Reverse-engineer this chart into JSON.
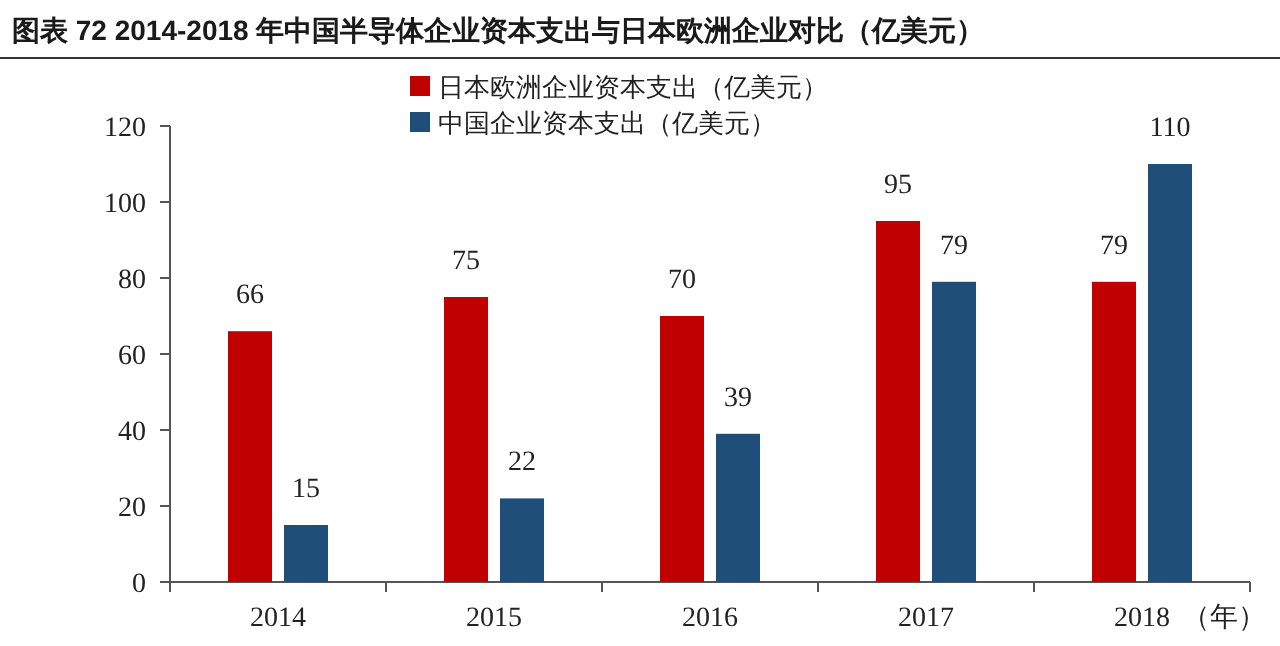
{
  "chart_data": {
    "type": "bar",
    "title": "图表 72   2014-2018 年中国半导体企业资本支出与日本欧洲企业对比（亿美元）",
    "xlabel": "（年）",
    "categories": [
      "2014",
      "2015",
      "2016",
      "2017",
      "2018"
    ],
    "series": [
      {
        "name": "日本欧洲企业资本支出（亿美元）",
        "color": "#c00000",
        "values": [
          66,
          75,
          70,
          95,
          79
        ]
      },
      {
        "name": "中国企业资本支出（亿美元）",
        "color": "#1f4e79",
        "values": [
          15,
          22,
          39,
          79,
          110
        ]
      }
    ],
    "ylim": [
      0,
      120
    ],
    "yticks": [
      0,
      20,
      40,
      60,
      80,
      100,
      120
    ],
    "data_labels": true,
    "legend": "top",
    "grid": false
  }
}
